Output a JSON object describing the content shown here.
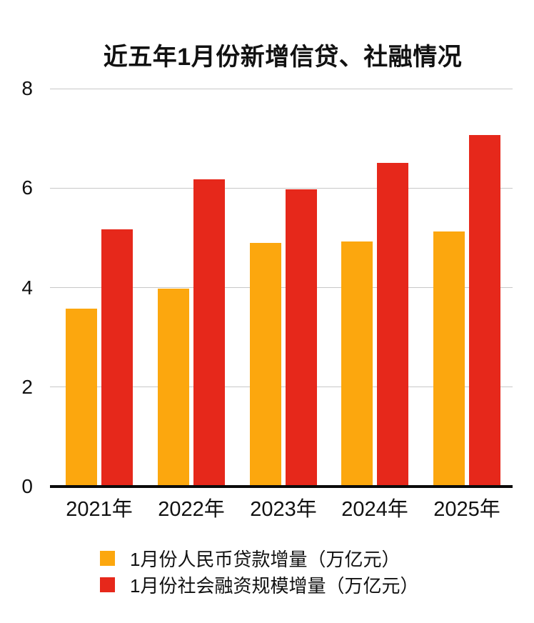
{
  "title": "近五年1月份新增信贷、社融情况",
  "colors": {
    "loan_bar": "#FCA70E",
    "tsf_bar": "#E6281B",
    "grid": "#C8C8C8",
    "axis": "#0B0B0B",
    "text": "#111111",
    "background": "#FFFFFF"
  },
  "chart_data": {
    "type": "bar",
    "title": "近五年1月份新增信贷、社融情况",
    "categories": [
      "2021年",
      "2022年",
      "2023年",
      "2024年",
      "2025年"
    ],
    "series": [
      {
        "key": "loan",
        "name": "1月份人民币贷款增量（万亿元）",
        "color": "#FCA70E",
        "values": [
          3.58,
          3.98,
          4.9,
          4.92,
          5.13
        ]
      },
      {
        "key": "tsf",
        "name": "1月份社会融资规模增量（万亿元）",
        "color": "#E6281B",
        "values": [
          5.17,
          6.17,
          5.98,
          6.5,
          7.06
        ]
      }
    ],
    "xlabel": "",
    "ylabel": "",
    "ylim": [
      0,
      8
    ],
    "yticks": [
      0,
      2,
      4,
      6,
      8
    ],
    "grid": true,
    "legend_position": "bottom"
  }
}
